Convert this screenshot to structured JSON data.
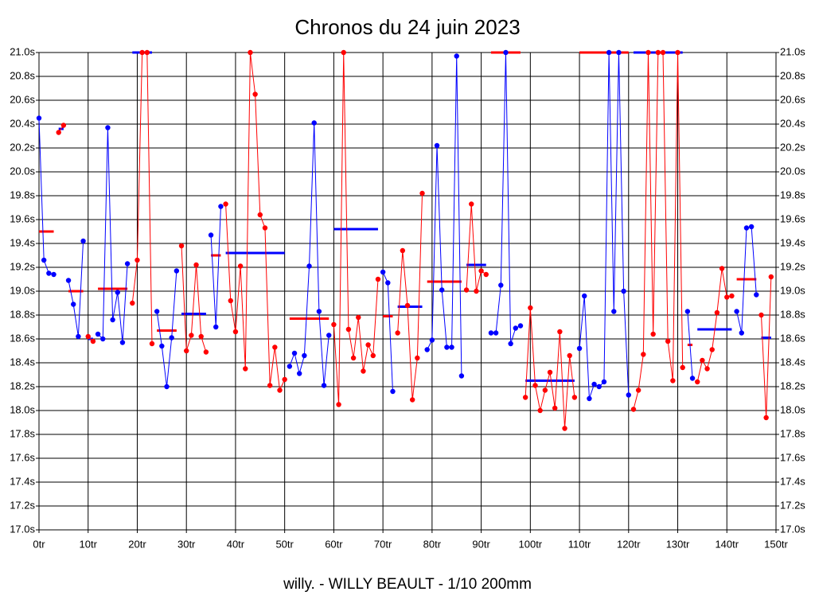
{
  "chart_data": {
    "type": "line",
    "title": "Chronos du 24 juin 2023",
    "subtitle": "willy. - WILLY BEAULT - 1/10 200mm",
    "xlim": [
      0,
      150
    ],
    "ylim": [
      17,
      21
    ],
    "grid": true,
    "xticks": [
      {
        "value": 0,
        "label": "0tr"
      },
      {
        "value": 10,
        "label": "10tr"
      },
      {
        "value": 20,
        "label": "20tr"
      },
      {
        "value": 30,
        "label": "30tr"
      },
      {
        "value": 40,
        "label": "40tr"
      },
      {
        "value": 50,
        "label": "50tr"
      },
      {
        "value": 60,
        "label": "60tr"
      },
      {
        "value": 70,
        "label": "70tr"
      },
      {
        "value": 80,
        "label": "80tr"
      },
      {
        "value": 90,
        "label": "90tr"
      },
      {
        "value": 100,
        "label": "100tr"
      },
      {
        "value": 110,
        "label": "110tr"
      },
      {
        "value": 120,
        "label": "120tr"
      },
      {
        "value": 130,
        "label": "130tr"
      },
      {
        "value": 140,
        "label": "140tr"
      },
      {
        "value": 150,
        "label": "150tr"
      }
    ],
    "yticks": [
      {
        "value": 17,
        "label": "17.0s"
      },
      {
        "value": 17.2,
        "label": "17.2s"
      },
      {
        "value": 17.4,
        "label": "17.4s"
      },
      {
        "value": 17.6,
        "label": "17.6s"
      },
      {
        "value": 17.8,
        "label": "17.8s"
      },
      {
        "value": 18,
        "label": "18.0s"
      },
      {
        "value": 18.2,
        "label": "18.2s"
      },
      {
        "value": 18.4,
        "label": "18.4s"
      },
      {
        "value": 18.6,
        "label": "18.6s"
      },
      {
        "value": 18.8,
        "label": "18.8s"
      },
      {
        "value": 19,
        "label": "19.0s"
      },
      {
        "value": 19.2,
        "label": "19.2s"
      },
      {
        "value": 19.4,
        "label": "19.4s"
      },
      {
        "value": 19.6,
        "label": "19.6s"
      },
      {
        "value": 19.8,
        "label": "19.8s"
      },
      {
        "value": 20,
        "label": "20.0s"
      },
      {
        "value": 20.2,
        "label": "20.2s"
      },
      {
        "value": 20.4,
        "label": "20.4s"
      },
      {
        "value": 20.6,
        "label": "20.6s"
      },
      {
        "value": 20.8,
        "label": "20.8s"
      },
      {
        "value": 21,
        "label": "21.0s"
      }
    ],
    "series": [
      {
        "color": "#0000ff",
        "mean_color": "#ff0000",
        "mean": 19.5,
        "x": [
          0,
          1,
          2,
          3
        ],
        "values": [
          20.45,
          19.26,
          19.15,
          19.14
        ]
      },
      {
        "color": "#ff0000",
        "mean_color": "#0000ff",
        "mean": 20.36,
        "x": [
          4,
          5
        ],
        "values": [
          20.33,
          20.39
        ]
      },
      {
        "color": "#0000ff",
        "mean_color": "#ff0000",
        "mean": 19.0,
        "x": [
          6,
          7,
          8,
          9
        ],
        "values": [
          19.09,
          18.89,
          18.62,
          19.42
        ]
      },
      {
        "color": "#ff0000",
        "mean_color": "#0000ff",
        "mean": 18.6,
        "x": [
          10,
          11
        ],
        "values": [
          18.62,
          18.58
        ]
      },
      {
        "color": "#0000ff",
        "mean_color": "#ff0000",
        "mean": 19.02,
        "x": [
          12,
          13,
          14,
          15,
          16,
          17,
          18
        ],
        "values": [
          18.64,
          18.6,
          20.37,
          18.76,
          18.99,
          18.57,
          19.23
        ]
      },
      {
        "color": "#ff0000",
        "mean_color": "#0000ff",
        "mean": 21.0,
        "x": [
          19,
          20,
          21,
          22,
          23
        ],
        "values": [
          18.9,
          19.26,
          21.0,
          21.0,
          18.56
        ]
      },
      {
        "color": "#0000ff",
        "mean_color": "#ff0000",
        "mean": 18.67,
        "x": [
          24,
          25,
          26,
          27,
          28
        ],
        "values": [
          18.83,
          18.54,
          18.2,
          18.61,
          19.17
        ]
      },
      {
        "color": "#ff0000",
        "mean_color": "#0000ff",
        "mean": 18.81,
        "x": [
          29,
          30,
          31,
          32,
          33,
          34
        ],
        "values": [
          19.38,
          18.5,
          18.63,
          19.22,
          18.62,
          18.49
        ]
      },
      {
        "color": "#0000ff",
        "mean_color": "#ff0000",
        "mean": 19.3,
        "x": [
          35,
          36,
          37
        ],
        "values": [
          19.47,
          18.7,
          19.71
        ]
      },
      {
        "color": "#ff0000",
        "mean_color": "#0000ff",
        "mean": 19.32,
        "x": [
          38,
          39,
          40,
          41,
          42,
          43,
          44,
          45,
          46,
          47,
          48,
          49,
          50
        ],
        "values": [
          19.73,
          18.92,
          18.66,
          19.21,
          18.35,
          21.0,
          20.65,
          19.64,
          19.53,
          18.21,
          18.53,
          18.17,
          18.26
        ]
      },
      {
        "color": "#0000ff",
        "mean_color": "#ff0000",
        "mean": 18.77,
        "x": [
          51,
          52,
          53,
          54,
          55,
          56,
          57,
          58,
          59
        ],
        "values": [
          18.37,
          18.48,
          18.31,
          18.46,
          19.21,
          20.41,
          18.83,
          18.21,
          18.63
        ]
      },
      {
        "color": "#ff0000",
        "mean_color": "#0000ff",
        "mean": 19.52,
        "x": [
          60,
          61,
          62,
          63,
          64,
          65,
          66,
          67,
          68,
          69
        ],
        "values": [
          18.72,
          18.05,
          21.0,
          18.68,
          18.44,
          18.78,
          18.33,
          18.55,
          18.46,
          19.1
        ]
      },
      {
        "color": "#0000ff",
        "mean_color": "#ff0000",
        "mean": 18.79,
        "x": [
          70,
          71,
          72
        ],
        "values": [
          19.16,
          19.07,
          18.16
        ]
      },
      {
        "color": "#ff0000",
        "mean_color": "#0000ff",
        "mean": 18.87,
        "x": [
          73,
          74,
          75,
          76,
          77,
          78
        ],
        "values": [
          18.65,
          19.34,
          18.88,
          18.09,
          18.44,
          19.82
        ]
      },
      {
        "color": "#0000ff",
        "mean_color": "#ff0000",
        "mean": 19.08,
        "x": [
          79,
          80,
          81,
          82,
          83,
          84,
          85,
          86
        ],
        "values": [
          18.51,
          18.59,
          20.22,
          19.01,
          18.53,
          18.53,
          20.97,
          18.29
        ]
      },
      {
        "color": "#ff0000",
        "mean_color": "#0000ff",
        "mean": 19.22,
        "x": [
          87,
          88,
          89,
          90,
          91
        ],
        "values": [
          19.01,
          19.73,
          19.0,
          19.17,
          19.14
        ]
      },
      {
        "color": "#0000ff",
        "mean_color": "#ff0000",
        "mean": 21.0,
        "x": [
          92,
          93,
          94,
          95,
          96,
          97,
          98
        ],
        "values": [
          18.65,
          18.65,
          19.05,
          21.0,
          18.56,
          18.69,
          18.71
        ]
      },
      {
        "color": "#ff0000",
        "mean_color": "#0000ff",
        "mean": 18.25,
        "x": [
          99,
          100,
          101,
          102,
          103,
          104,
          105,
          106,
          107,
          108,
          109
        ],
        "values": [
          18.11,
          18.86,
          18.21,
          18.0,
          18.17,
          18.32,
          18.02,
          18.66,
          17.85,
          18.46,
          18.11
        ]
      },
      {
        "color": "#0000ff",
        "mean_color": "#ff0000",
        "mean": 21.0,
        "x": [
          110,
          111,
          112,
          113,
          114,
          115,
          116,
          117,
          118,
          119,
          120
        ],
        "values": [
          18.52,
          18.96,
          18.1,
          18.22,
          18.2,
          18.24,
          21.0,
          18.83,
          21.0,
          19.0,
          18.13
        ]
      },
      {
        "color": "#ff0000",
        "mean_color": "#0000ff",
        "mean": 21.0,
        "x": [
          121,
          122,
          123,
          124,
          125,
          126,
          127,
          128,
          129,
          130,
          131
        ],
        "values": [
          18.01,
          18.17,
          18.47,
          21.0,
          18.64,
          21.0,
          21.0,
          18.58,
          18.25,
          21.0,
          18.36
        ]
      },
      {
        "color": "#0000ff",
        "mean_color": "#ff0000",
        "mean": 18.55,
        "x": [
          132,
          133
        ],
        "values": [
          18.83,
          18.27
        ]
      },
      {
        "color": "#ff0000",
        "mean_color": "#0000ff",
        "mean": 18.68,
        "x": [
          134,
          135,
          136,
          137,
          138,
          139,
          140,
          141
        ],
        "values": [
          18.24,
          18.42,
          18.35,
          18.51,
          18.82,
          19.19,
          18.95,
          18.96
        ]
      },
      {
        "color": "#0000ff",
        "mean_color": "#ff0000",
        "mean": 19.1,
        "x": [
          142,
          143,
          144,
          145,
          146
        ],
        "values": [
          18.83,
          18.65,
          19.53,
          19.54,
          18.97
        ]
      },
      {
        "color": "#ff0000",
        "mean_color": "#0000ff",
        "mean": 18.61,
        "x": [
          147,
          148,
          149
        ],
        "values": [
          18.8,
          17.94,
          19.12
        ]
      }
    ]
  }
}
